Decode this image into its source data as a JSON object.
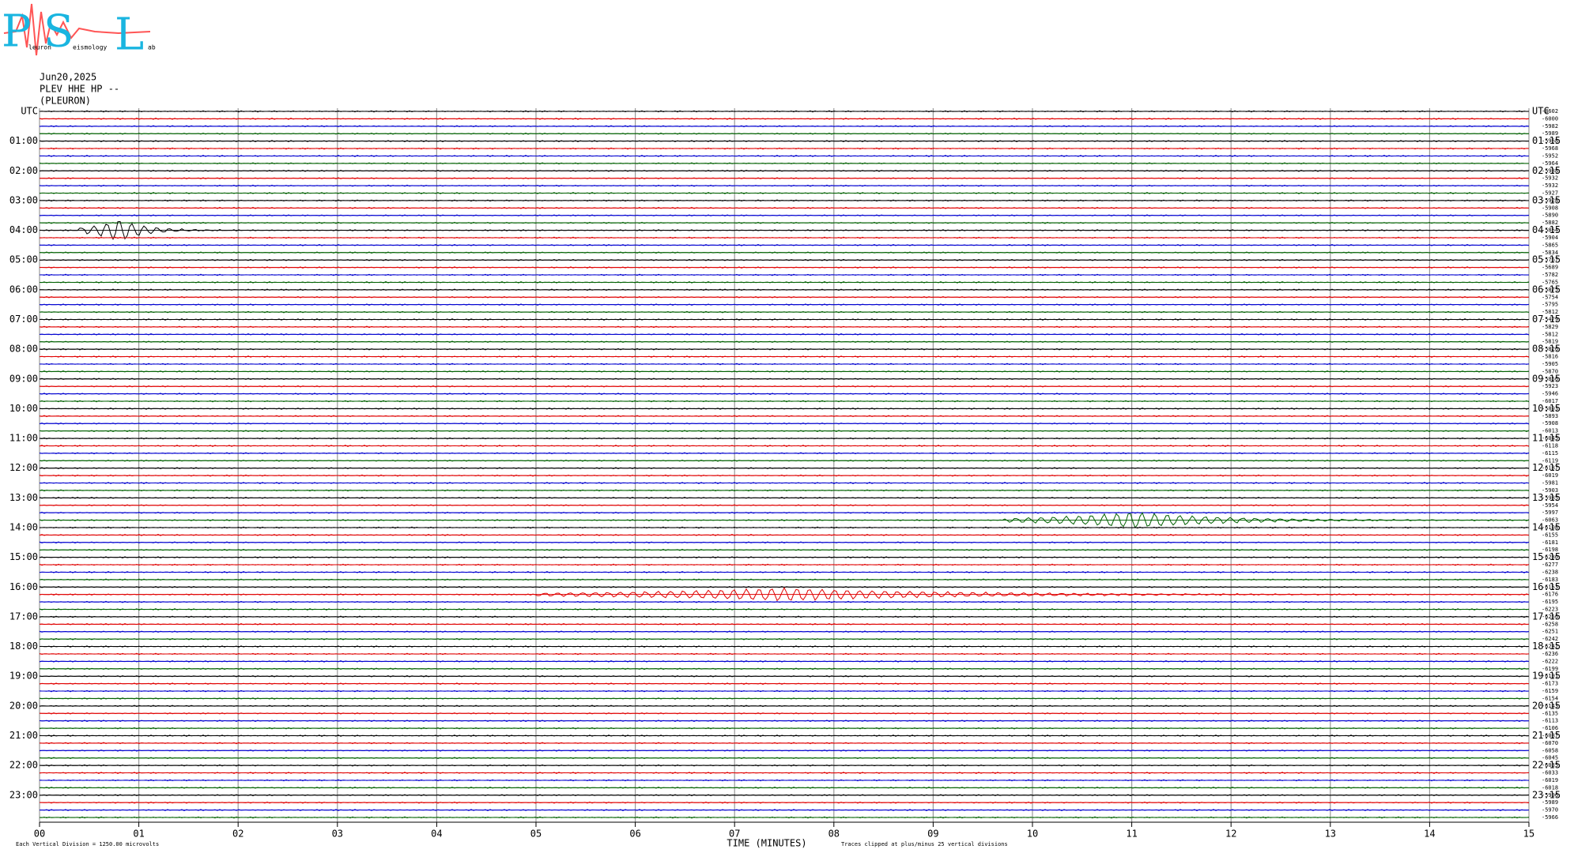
{
  "chart_data": {
    "type": "helicorder",
    "logo": {
      "letters": [
        "P",
        "S",
        "L"
      ],
      "words": [
        "leuron",
        "eismology",
        "ab"
      ]
    },
    "date": "Jun20,2025",
    "station": "PLEV HHE HP --",
    "location": "(PLEURON)",
    "xlabel": "TIME (MINUTES)",
    "scale_note": "Each Vertical Division = 1250.00 microvolts",
    "clip_note": "Traces clipped at plus/minus 25 vertical divisions",
    "xlim": [
      0,
      15
    ],
    "xticks": [
      {
        "value": 0,
        "label": "00"
      },
      {
        "value": 1,
        "label": "01"
      },
      {
        "value": 2,
        "label": "02"
      },
      {
        "value": 3,
        "label": "03"
      },
      {
        "value": 4,
        "label": "04"
      },
      {
        "value": 5,
        "label": "05"
      },
      {
        "value": 6,
        "label": "06"
      },
      {
        "value": 7,
        "label": "07"
      },
      {
        "value": 8,
        "label": "08"
      },
      {
        "value": 9,
        "label": "09"
      },
      {
        "value": 10,
        "label": "10"
      },
      {
        "value": 11,
        "label": "11"
      },
      {
        "value": 12,
        "label": "12"
      },
      {
        "value": 13,
        "label": "13"
      },
      {
        "value": 14,
        "label": "14"
      },
      {
        "value": 15,
        "label": "15"
      }
    ],
    "grid": true,
    "trace_colors": [
      "#000000",
      "#e00000",
      "#0000d0",
      "#006000"
    ],
    "left_labels": [
      "UTC",
      "01:00",
      "02:00",
      "03:00",
      "04:00",
      "05:00",
      "06:00",
      "07:00",
      "08:00",
      "09:00",
      "10:00",
      "11:00",
      "12:00",
      "13:00",
      "14:00",
      "15:00",
      "16:00",
      "17:00",
      "18:00",
      "19:00",
      "20:00",
      "21:00",
      "22:00",
      "23:00"
    ],
    "right_labels": [
      "UTC",
      "01:15",
      "02:15",
      "03:15",
      "04:15",
      "05:15",
      "06:15",
      "07:15",
      "08:15",
      "09:15",
      "10:15",
      "11:15",
      "12:15",
      "13:15",
      "14:15",
      "15:15",
      "16:15",
      "17:15",
      "18:15",
      "19:15",
      "20:15",
      "21:15",
      "22:15",
      "23:15"
    ],
    "offsets": [
      -8602,
      -6000,
      -5982,
      -5989,
      -5968,
      -5968,
      -5952,
      -5964,
      -5938,
      -5932,
      -5932,
      -5927,
      -5928,
      -5908,
      -5890,
      -5882,
      -5864,
      -5904,
      -5865,
      -5834,
      -5767,
      -5689,
      -5782,
      -5765,
      -5875,
      -5754,
      -5795,
      -5812,
      -5479,
      -5829,
      -5812,
      -5819,
      -5826,
      -5816,
      -5905,
      -5870,
      -5856,
      -5923,
      -5946,
      -6017,
      -5893,
      -5893,
      -5908,
      -6013,
      -6045,
      -6118,
      -6115,
      -6119,
      -6187,
      -6019,
      -5981,
      -5903,
      -5985,
      -5954,
      -5997,
      -6063,
      -6108,
      -6155,
      -6181,
      -6198,
      -6230,
      -6277,
      -6238,
      -6183,
      -6153,
      -6176,
      -6195,
      -6223,
      -6256,
      -6258,
      -6251,
      -6242,
      -6242,
      -6236,
      -6222,
      -6199,
      -6191,
      -6173,
      -6159,
      -6154,
      -6143,
      -6135,
      -6113,
      -6106,
      -6087,
      -6070,
      -6058,
      -6045,
      -6035,
      -6033,
      -6019,
      -6018,
      -5996,
      -5989,
      -5970,
      -5966
    ]
  }
}
